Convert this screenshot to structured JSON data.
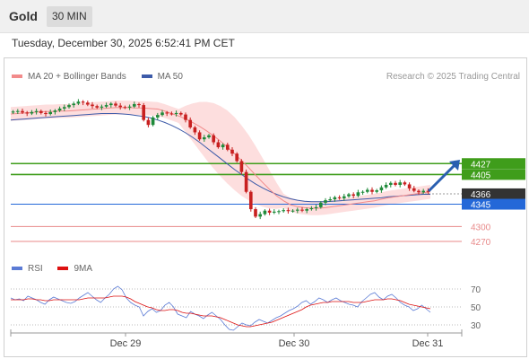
{
  "header": {
    "title": "Gold",
    "interval": "30 MIN"
  },
  "datetime": "Tuesday, December 30, 2025 6:52:41 PM CET",
  "legend": {
    "ma20": "MA 20 + Bollinger Bands",
    "ma50": "MA 50",
    "ma20_color": "#f28b8b",
    "ma50_color": "#3d5ba9"
  },
  "credit": "Research © 2025 Trading Central",
  "rsi_legend": {
    "rsi": "RSI",
    "ma9": "9MA",
    "rsi_color": "#5b7bd5",
    "ma9_color": "#dd1111"
  },
  "colors": {
    "up": "#1f8a3a",
    "down": "#c82020",
    "band_fill": "#fcd6d6",
    "support_blue": "#2468d8",
    "target_green": "#3f9d1b",
    "support_red": "#e88a8a",
    "current_label": "#333333",
    "arrow": "#2a5fb0"
  },
  "chart_data": [
    {
      "type": "line",
      "title": "Gold",
      "x_ticks": [
        "Dec 29",
        "Dec 30",
        "Dec 31"
      ],
      "y_range": [
        4250,
        4585
      ],
      "levels": [
        {
          "label": "4427",
          "value": 4427,
          "kind": "resistance"
        },
        {
          "label": "4405",
          "value": 4405,
          "kind": "resistance"
        },
        {
          "label": "4366",
          "value": 4366,
          "kind": "current"
        },
        {
          "label": "4345",
          "value": 4345,
          "kind": "support"
        },
        {
          "label": "4300",
          "value": 4300,
          "kind": "support"
        },
        {
          "label": "4270",
          "value": 4270,
          "kind": "support"
        }
      ],
      "candles_close": [
        4532,
        4533,
        4530,
        4528,
        4531,
        4533,
        4529,
        4527,
        4531,
        4534,
        4538,
        4541,
        4545,
        4548,
        4552,
        4550,
        4546,
        4543,
        4540,
        4542,
        4545,
        4548,
        4544,
        4541,
        4540,
        4542,
        4547,
        4545,
        4515,
        4505,
        4520,
        4525,
        4530,
        4528,
        4527,
        4529,
        4526,
        4515,
        4500,
        4490,
        4476,
        4480,
        4484,
        4470,
        4460,
        4465,
        4455,
        4447,
        4432,
        4410,
        4370,
        4335,
        4320,
        4325,
        4332,
        4328,
        4330,
        4331,
        4333,
        4331,
        4332,
        4334,
        4332,
        4335,
        4337,
        4339,
        4348,
        4353,
        4355,
        4359,
        4357,
        4361,
        4365,
        4362,
        4369,
        4370,
        4374,
        4370,
        4373,
        4379,
        4384,
        4388,
        4384,
        4389,
        4385,
        4377,
        4372,
        4369,
        4372,
        4370
      ],
      "ma20": [
        4527,
        4528,
        4529,
        4530,
        4531,
        4532,
        4532,
        4533,
        4533,
        4534,
        4535,
        4536,
        4537,
        4538,
        4539,
        4540,
        4540,
        4540,
        4539,
        4539,
        4538,
        4537,
        4533,
        4528,
        4523,
        4517,
        4510,
        4502,
        4493,
        4483,
        4472,
        4460,
        4447,
        4433,
        4419,
        4404,
        4389,
        4375,
        4362,
        4352,
        4344,
        4340,
        4338,
        4337,
        4337,
        4338,
        4340,
        4342,
        4344,
        4346,
        4348,
        4350,
        4352,
        4355,
        4358,
        4360,
        4362,
        4364,
        4366,
        4368,
        4370
      ],
      "ma50": [
        4515,
        4516,
        4517,
        4518,
        4519,
        4520,
        4521,
        4522,
        4523,
        4524,
        4525,
        4526,
        4527,
        4528,
        4528,
        4528,
        4527,
        4526,
        4524,
        4522,
        4519,
        4515,
        4510,
        4504,
        4497,
        4489,
        4480,
        4470,
        4459,
        4448,
        4437,
        4426,
        4415,
        4405,
        4395,
        4386,
        4378,
        4371,
        4365,
        4360,
        4356,
        4353,
        4351,
        4350,
        4350,
        4350,
        4351,
        4352,
        4353,
        4354,
        4355,
        4356,
        4357,
        4358,
        4360,
        4361,
        4362,
        4363,
        4364,
        4365,
        4365
      ],
      "rsi_range": [
        20,
        80
      ],
      "rsi_levels": [
        70,
        50,
        30
      ],
      "rsi": [
        60,
        58,
        59,
        57,
        62,
        60,
        58,
        55,
        53,
        58,
        61,
        59,
        57,
        55,
        54,
        56,
        60,
        63,
        66,
        62,
        58,
        55,
        60,
        64,
        70,
        73,
        69,
        60,
        55,
        52,
        50,
        40,
        45,
        48,
        44,
        46,
        52,
        55,
        50,
        42,
        40,
        38,
        45,
        42,
        40,
        37,
        41,
        44,
        40,
        36,
        30,
        25,
        24,
        28,
        32,
        30,
        29,
        33,
        36,
        34,
        32,
        35,
        38,
        40,
        43,
        46,
        48,
        51,
        55,
        57,
        53,
        56,
        60,
        58,
        55,
        58,
        60,
        57,
        55,
        53,
        52,
        50,
        56,
        60,
        64,
        66,
        61,
        58,
        62,
        64,
        60,
        55,
        52,
        50,
        46,
        48,
        52,
        48,
        44
      ],
      "rsi_ma9": [
        58,
        58,
        58,
        58,
        59,
        59,
        58,
        58,
        57,
        57,
        58,
        58,
        58,
        58,
        58,
        58,
        58,
        59,
        60,
        60,
        60,
        60,
        60,
        61,
        62,
        62,
        62,
        61,
        59,
        56,
        54,
        52,
        50,
        49,
        47,
        46,
        46,
        47,
        47,
        46,
        44,
        43,
        43,
        42,
        41,
        40,
        40,
        40,
        39,
        38,
        36,
        34,
        32,
        30,
        29,
        28,
        28,
        29,
        30,
        31,
        32,
        33,
        35,
        37,
        39,
        41,
        43,
        45,
        47,
        50,
        52,
        53,
        54,
        55,
        55,
        56,
        56,
        56,
        56,
        56,
        55,
        55,
        55,
        56,
        57,
        58,
        58,
        58,
        59,
        59,
        58,
        57,
        55,
        53,
        52,
        51,
        50,
        49,
        48
      ]
    }
  ]
}
